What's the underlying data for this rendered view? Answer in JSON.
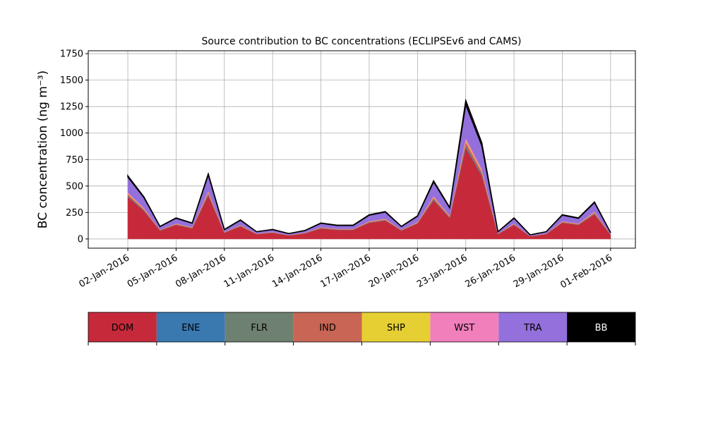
{
  "chart_data": {
    "type": "stacked_area",
    "title": "Source contribution to BC concentrations (ECLIPSEv6 and CAMS)",
    "y_label": "BC concentration (ng m⁻³)",
    "x": [
      "2016-01-02",
      "2016-01-03",
      "2016-01-04",
      "2016-01-05",
      "2016-01-06",
      "2016-01-07",
      "2016-01-08",
      "2016-01-09",
      "2016-01-10",
      "2016-01-11",
      "2016-01-12",
      "2016-01-13",
      "2016-01-14",
      "2016-01-15",
      "2016-01-16",
      "2016-01-17",
      "2016-01-18",
      "2016-01-19",
      "2016-01-20",
      "2016-01-21",
      "2016-01-22",
      "2016-01-23",
      "2016-01-24",
      "2016-01-25",
      "2016-01-26",
      "2016-01-27",
      "2016-01-28",
      "2016-01-29",
      "2016-01-30",
      "2016-01-31",
      "2016-02-01"
    ],
    "series": [
      {
        "name": "DOM",
        "color": "#c62a3a",
        "values": [
          396,
          264,
          79,
          132,
          99,
          409,
          59,
          119,
          46,
          59,
          33,
          53,
          99,
          86,
          86,
          152,
          172,
          79,
          145,
          363,
          198,
          858,
          594,
          46,
          132,
          26,
          46,
          152,
          132,
          231,
          40
        ]
      },
      {
        "name": "ENE",
        "color": "#3a78b0",
        "values": [
          6,
          4,
          1,
          2,
          2,
          6,
          1,
          2,
          1,
          1,
          1,
          1,
          2,
          1,
          1,
          2,
          3,
          1,
          2,
          6,
          3,
          13,
          9,
          1,
          2,
          0,
          1,
          2,
          2,
          4,
          1
        ]
      },
      {
        "name": "FLR",
        "color": "#6e8070",
        "values": [
          3,
          2,
          1,
          1,
          1,
          3,
          0,
          1,
          0,
          0,
          0,
          0,
          1,
          1,
          1,
          1,
          1,
          1,
          1,
          3,
          2,
          7,
          5,
          0,
          1,
          0,
          0,
          1,
          1,
          2,
          0
        ]
      },
      {
        "name": "IND",
        "color": "#c96554",
        "values": [
          18,
          12,
          4,
          6,
          5,
          19,
          3,
          5,
          2,
          3,
          2,
          2,
          5,
          4,
          4,
          7,
          8,
          4,
          7,
          17,
          9,
          39,
          27,
          2,
          6,
          1,
          2,
          7,
          6,
          11,
          2
        ]
      },
      {
        "name": "SHP",
        "color": "#e6cf32",
        "values": [
          6,
          4,
          1,
          2,
          2,
          6,
          1,
          2,
          1,
          1,
          1,
          1,
          2,
          1,
          1,
          2,
          3,
          1,
          2,
          6,
          3,
          13,
          9,
          1,
          2,
          0,
          1,
          2,
          2,
          4,
          1
        ]
      },
      {
        "name": "WST",
        "color": "#f07fbb",
        "values": [
          12,
          8,
          2,
          4,
          3,
          12,
          2,
          4,
          1,
          2,
          1,
          2,
          3,
          3,
          3,
          5,
          5,
          2,
          4,
          11,
          6,
          26,
          18,
          1,
          4,
          1,
          1,
          5,
          4,
          7,
          1
        ]
      },
      {
        "name": "TRA",
        "color": "#9370db",
        "values": [
          144,
          96,
          29,
          48,
          36,
          149,
          22,
          43,
          17,
          22,
          12,
          19,
          36,
          31,
          31,
          55,
          62,
          29,
          53,
          132,
          72,
          312,
          216,
          17,
          48,
          10,
          17,
          55,
          48,
          84,
          14
        ]
      },
      {
        "name": "BB",
        "color": "#000000",
        "values": [
          12,
          8,
          2,
          4,
          3,
          12,
          2,
          4,
          1,
          2,
          1,
          2,
          3,
          3,
          3,
          5,
          5,
          2,
          4,
          11,
          6,
          40,
          30,
          1,
          4,
          1,
          1,
          5,
          4,
          7,
          1
        ]
      }
    ],
    "xlim": [
      "2015-12-30T13:00:00Z",
      "2016-02-02T13:00:00Z"
    ],
    "xticks": [
      {
        "value": "2016-01-02",
        "label": "02-Jan-2016"
      },
      {
        "value": "2016-01-05",
        "label": "05-Jan-2016"
      },
      {
        "value": "2016-01-08",
        "label": "08-Jan-2016"
      },
      {
        "value": "2016-01-11",
        "label": "11-Jan-2016"
      },
      {
        "value": "2016-01-14",
        "label": "14-Jan-2016"
      },
      {
        "value": "2016-01-17",
        "label": "17-Jan-2016"
      },
      {
        "value": "2016-01-20",
        "label": "20-Jan-2016"
      },
      {
        "value": "2016-01-23",
        "label": "23-Jan-2016"
      },
      {
        "value": "2016-01-26",
        "label": "26-Jan-2016"
      },
      {
        "value": "2016-01-29",
        "label": "29-Jan-2016"
      },
      {
        "value": "2016-02-01",
        "label": "01-Feb-2016"
      }
    ],
    "ylim": [
      -87,
      1777
    ],
    "yticks": [
      0,
      250,
      500,
      750,
      1000,
      1250,
      1500,
      1750
    ],
    "grid": true,
    "legend": "below"
  }
}
